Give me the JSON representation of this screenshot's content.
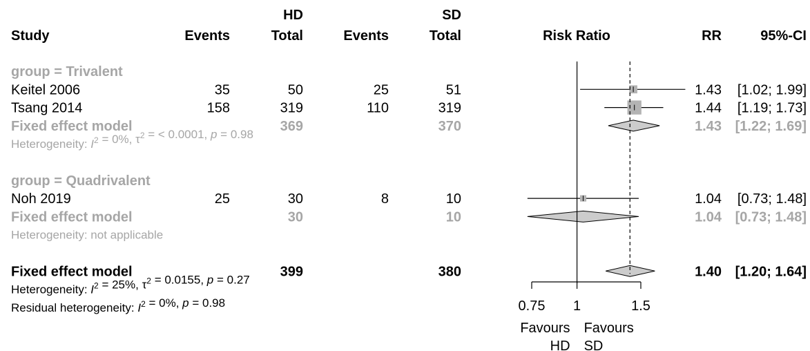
{
  "header": {
    "hd_group": "HD",
    "sd_group": "SD",
    "study": "Study",
    "events": "Events",
    "total": "Total",
    "risk_ratio": "Risk Ratio",
    "rr": "RR",
    "ci": "95%-CI"
  },
  "colors": {
    "text": "#000000",
    "subgroup_text": "#a6a6a6",
    "box": "#b3b3b3",
    "diamond": "#cccccc"
  },
  "rows": [
    {
      "kind": "group",
      "label": "group = Trivalent"
    },
    {
      "kind": "study",
      "label": "Keitel 2006",
      "hd_events": "35",
      "hd_total": "50",
      "sd_events": "25",
      "sd_total": "51",
      "rr": 1.43,
      "lo": 1.02,
      "hi": 1.99,
      "rr_text": "1.43",
      "ci_text": "[1.02; 1.99]",
      "weight": 0.18
    },
    {
      "kind": "study",
      "label": "Tsang 2014",
      "hd_events": "158",
      "hd_total": "319",
      "sd_events": "110",
      "sd_total": "319",
      "rr": 1.44,
      "lo": 1.19,
      "hi": 1.73,
      "rr_text": "1.44",
      "ci_text": "[1.19; 1.73]",
      "weight": 0.82
    },
    {
      "kind": "subtotal",
      "label": "Fixed effect model",
      "hd_total": "369",
      "sd_total": "370",
      "rr": 1.43,
      "lo": 1.22,
      "hi": 1.69,
      "rr_text": "1.43",
      "ci_text": "[1.22; 1.69]"
    },
    {
      "kind": "het",
      "segments": [
        {
          "t": "Heterogeneity: "
        },
        {
          "t": "I",
          "i": true
        },
        {
          "t": "2",
          "sup": true
        },
        {
          "t": " = 0%, τ"
        },
        {
          "t": "2",
          "sup": true
        },
        {
          "t": " = < 0.0001, "
        },
        {
          "t": "p",
          "i": true
        },
        {
          "t": " = 0.98"
        }
      ]
    },
    {
      "kind": "blank"
    },
    {
      "kind": "group",
      "label": "group = Quadrivalent"
    },
    {
      "kind": "study",
      "label": "Noh 2019",
      "hd_events": "25",
      "hd_total": "30",
      "sd_events": "8",
      "sd_total": "10",
      "rr": 1.04,
      "lo": 0.73,
      "hi": 1.48,
      "rr_text": "1.04",
      "ci_text": "[0.73; 1.48]",
      "weight": 0.08
    },
    {
      "kind": "subtotal",
      "label": "Fixed effect model",
      "hd_total": "30",
      "sd_total": "10",
      "rr": 1.04,
      "lo": 0.73,
      "hi": 1.48,
      "rr_text": "1.04",
      "ci_text": "[0.73; 1.48]"
    },
    {
      "kind": "het",
      "segments": [
        {
          "t": "Heterogeneity: not applicable"
        }
      ]
    },
    {
      "kind": "blank"
    },
    {
      "kind": "overall",
      "label": "Fixed effect model",
      "hd_total": "399",
      "sd_total": "380",
      "rr": 1.4,
      "lo": 1.2,
      "hi": 1.64,
      "rr_text": "1.40",
      "ci_text": "[1.20; 1.64]"
    },
    {
      "kind": "het_overall",
      "segments": [
        {
          "t": "Heterogeneity: "
        },
        {
          "t": "I",
          "i": true
        },
        {
          "t": "2",
          "sup": true
        },
        {
          "t": " = 25%, τ"
        },
        {
          "t": "2",
          "sup": true
        },
        {
          "t": " = 0.0155, "
        },
        {
          "t": "p",
          "i": true
        },
        {
          "t": " = 0.27"
        }
      ]
    },
    {
      "kind": "het_overall",
      "segments": [
        {
          "t": "Residual heterogeneity: "
        },
        {
          "t": "I",
          "i": true
        },
        {
          "t": "2",
          "sup": true
        },
        {
          "t": " = 0%, "
        },
        {
          "t": "p",
          "i": true
        },
        {
          "t": " = 0.98"
        }
      ]
    }
  ],
  "chart_data": {
    "type": "forest",
    "scale": "log",
    "xlim": [
      0.75,
      1.5
    ],
    "ticks": [
      0.75,
      1,
      1.5
    ],
    "tick_labels": [
      "0.75",
      "1",
      "1.5"
    ],
    "null_value": 1,
    "pooled_line": 1.4,
    "favours_left": [
      "Favours",
      "HD"
    ],
    "favours_right": [
      "Favours",
      "SD"
    ],
    "studies": [
      {
        "name": "Keitel 2006",
        "rr": 1.43,
        "ci": [
          1.02,
          1.99
        ]
      },
      {
        "name": "Tsang 2014",
        "rr": 1.44,
        "ci": [
          1.19,
          1.73
        ]
      },
      {
        "name": "Noh 2019",
        "rr": 1.04,
        "ci": [
          0.73,
          1.48
        ]
      }
    ],
    "subgroups": [
      {
        "name": "group = Trivalent",
        "rr": 1.43,
        "ci": [
          1.22,
          1.69
        ]
      },
      {
        "name": "group = Quadrivalent",
        "rr": 1.04,
        "ci": [
          0.73,
          1.48
        ]
      }
    ],
    "overall": {
      "rr": 1.4,
      "ci": [
        1.2,
        1.64
      ]
    }
  }
}
